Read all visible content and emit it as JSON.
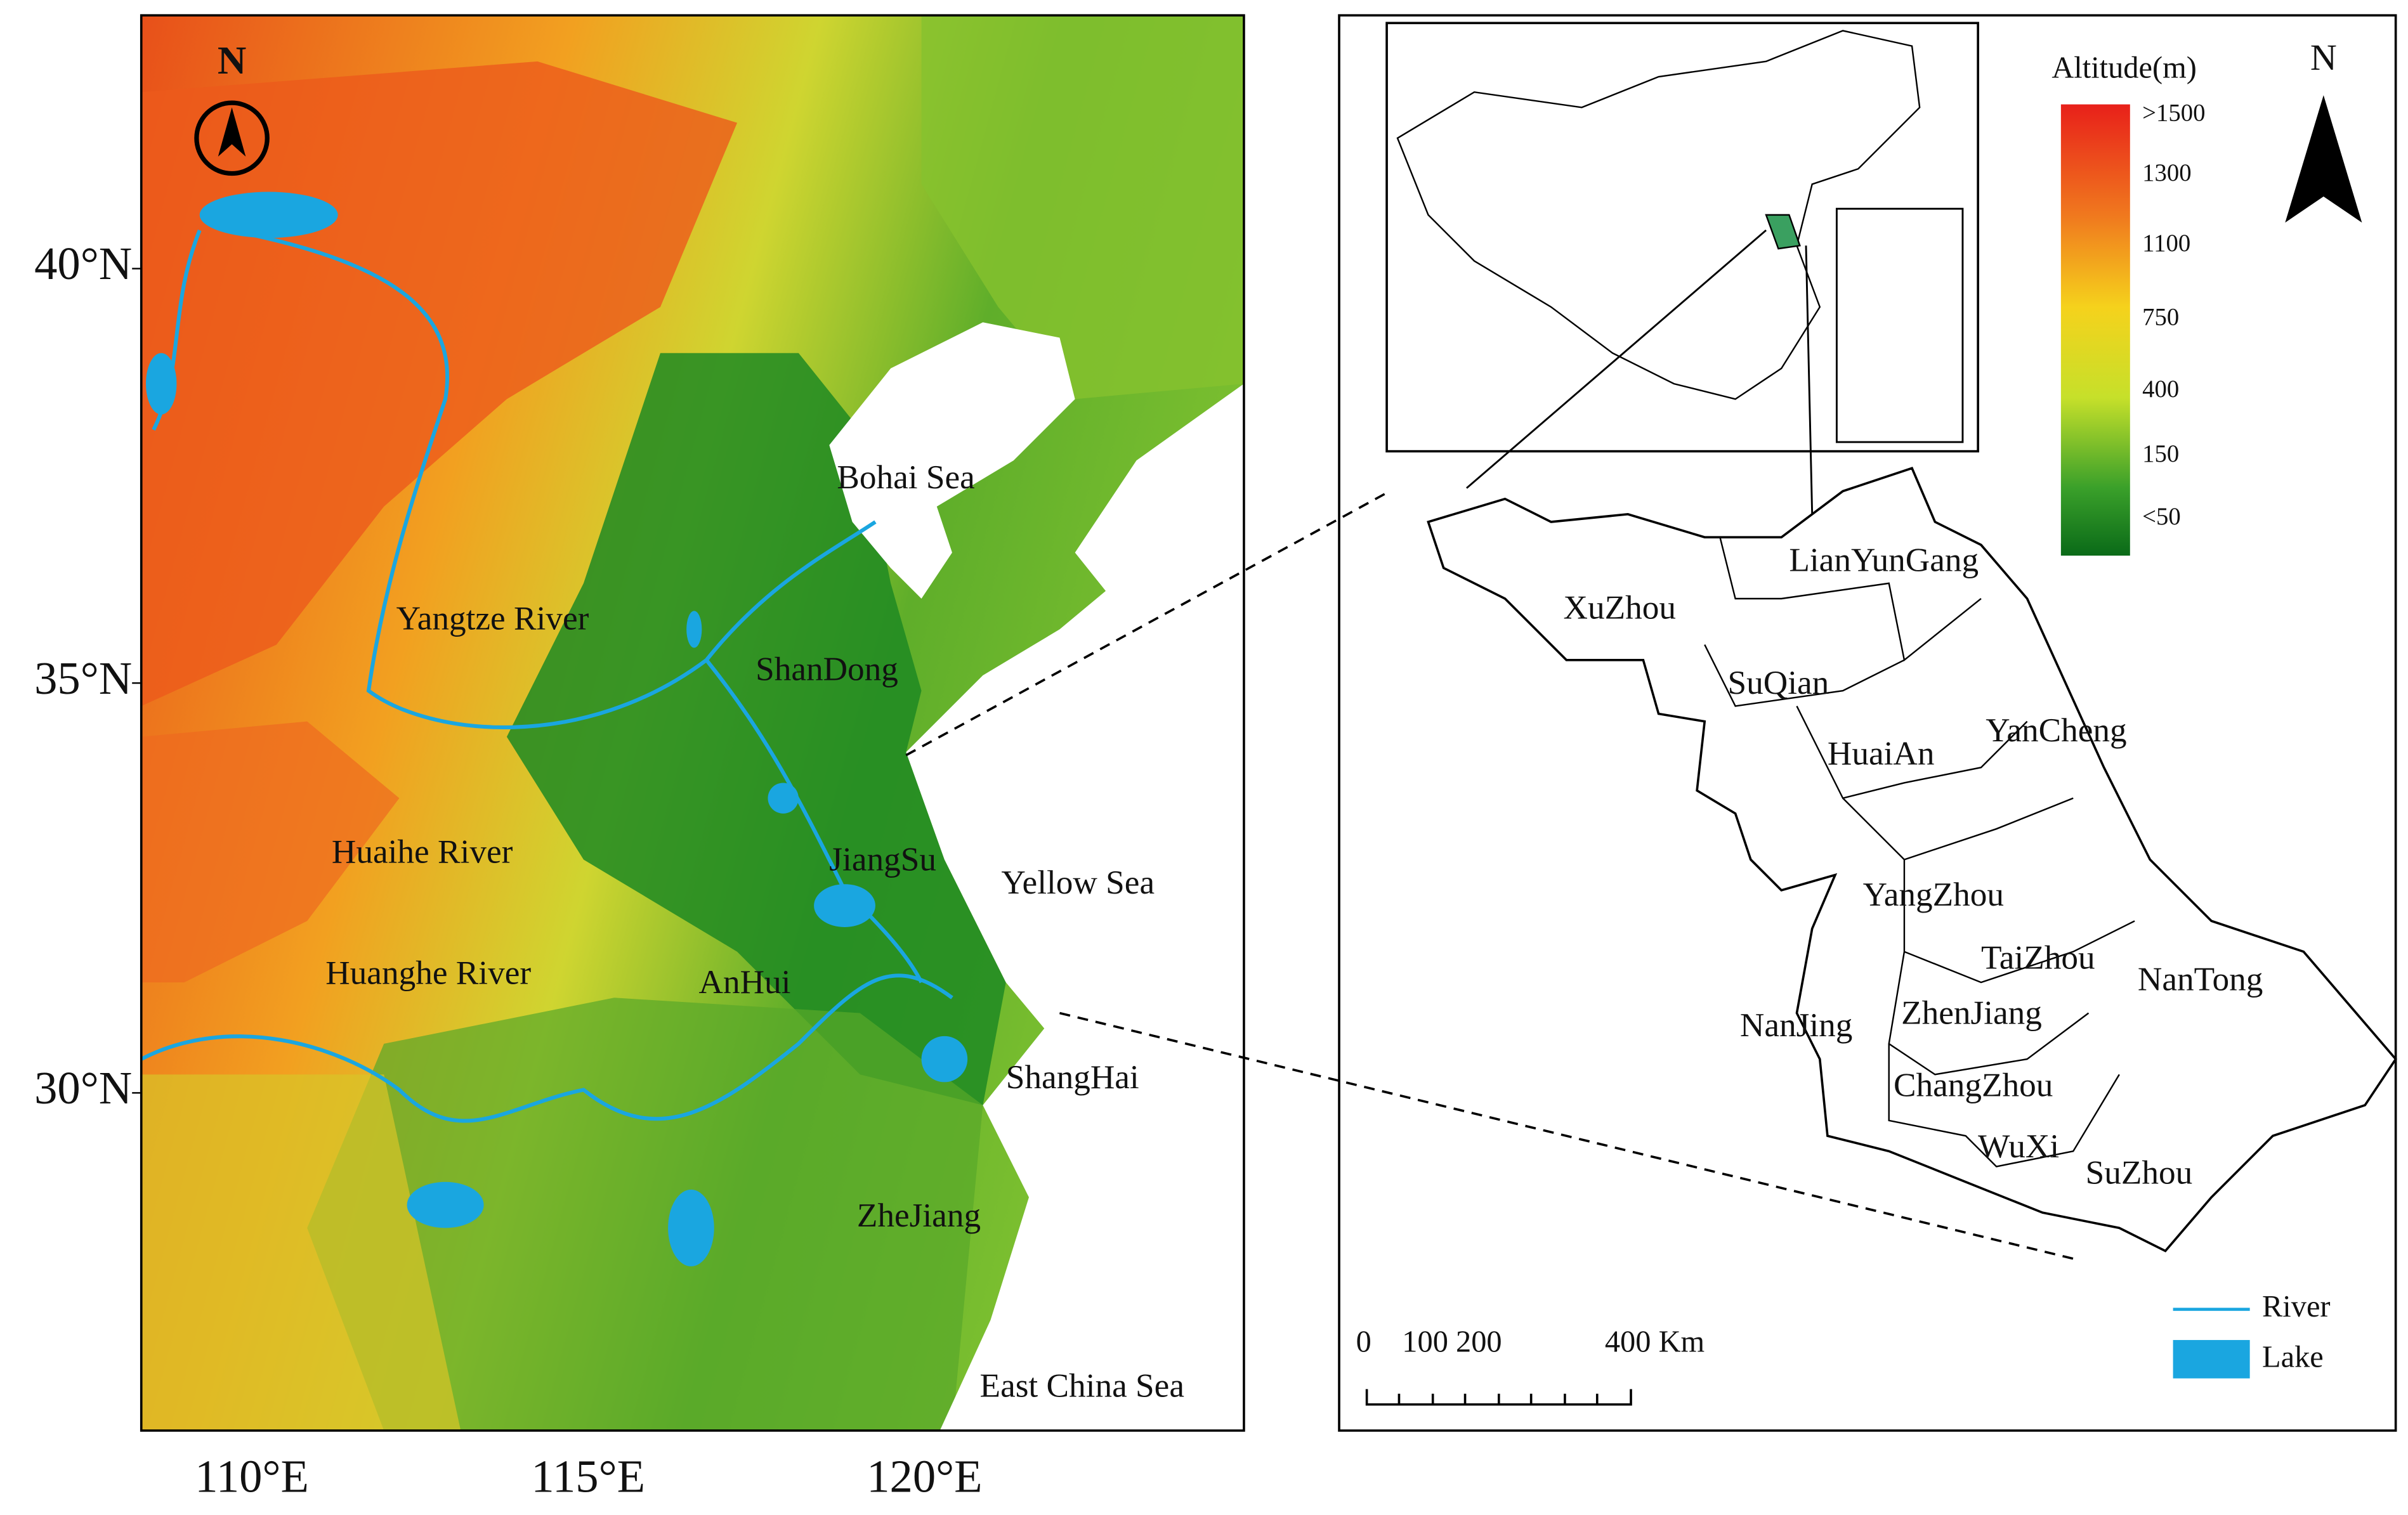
{
  "left_map": {
    "north": "N",
    "lat_labels": [
      "40°N",
      "35°N",
      "30°N"
    ],
    "lon_labels": [
      "110°E",
      "115°E",
      "120°E"
    ],
    "places": [
      "Bohai Sea",
      "Yangtze River",
      "ShanDong",
      "Huaihe River",
      "JiangSu",
      "Yellow Sea",
      "AnHui",
      "Huanghe River",
      "ShangHai",
      "ZheJiang",
      "East China Sea"
    ]
  },
  "right_map": {
    "legend_title": "Altitude(m)",
    "legend_labels": [
      ">1500",
      "1300",
      "1100",
      "750",
      "400",
      "150",
      "<50"
    ],
    "north": "N",
    "cities": [
      "LianYunGang",
      "XuZhou",
      "SuQian",
      "YanCheng",
      "HuaiAn",
      "YangZhou",
      "TaiZhou",
      "NanTong",
      "NanJing",
      "ZhenJiang",
      "ChangZhou",
      "WuXi",
      "SuZhou"
    ],
    "scale_labels": [
      "0",
      "100 200",
      "400 Km"
    ],
    "legend": [
      "River",
      "Lake"
    ]
  }
}
